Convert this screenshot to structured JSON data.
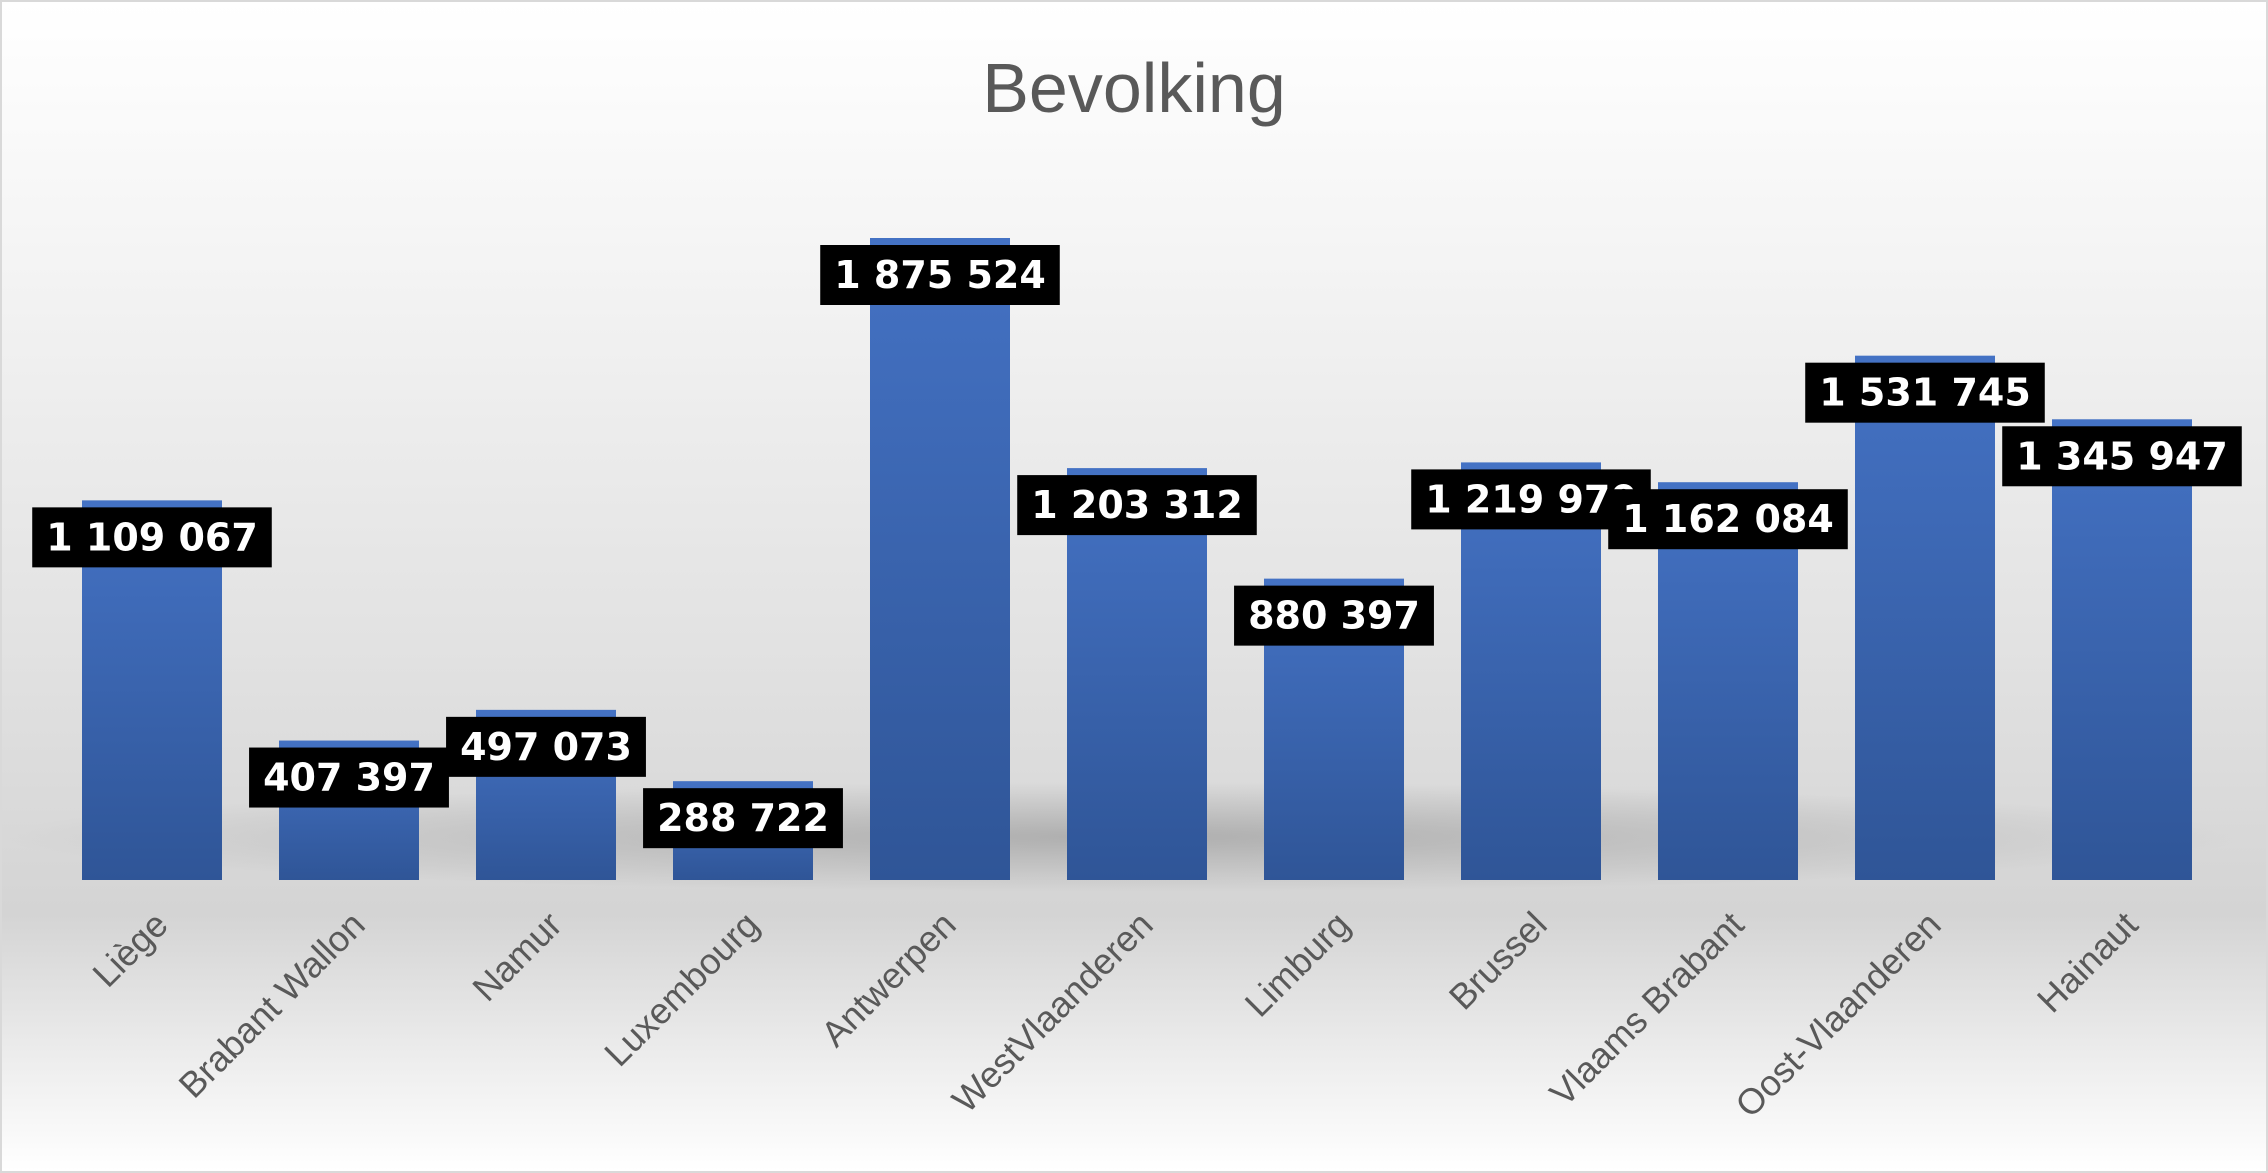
{
  "chart_data": {
    "type": "bar",
    "title": "Bevolking",
    "xlabel": "",
    "ylabel": "",
    "categories": [
      "Liège",
      "Brabant Wallon",
      "Namur",
      "Luxembourg",
      "Antwerpen",
      "WestVlaanderen",
      "Limburg",
      "Brussel",
      "Vlaams Brabant",
      "Oost-Vlaanderen",
      "Hainaut"
    ],
    "values": [
      1109067,
      407397,
      497073,
      288722,
      1875524,
      1203312,
      880397,
      1219970,
      1162084,
      1531745,
      1345947
    ],
    "data_labels": [
      "1 109 067",
      "407 397",
      "497 073",
      "288 722",
      "1 875 524",
      "1 203 312",
      "880 397",
      "1 219 970",
      "1 162 084",
      "1 531 745",
      "1 345 947"
    ],
    "ylim": [
      0,
      1875524
    ],
    "grid": false,
    "legend": "none",
    "colors": {
      "bar_top": "#4472c4",
      "bar_bottom": "#2f5597",
      "label_background": "#000000",
      "label_text": "#ffffff",
      "axis_text": "#595959"
    }
  }
}
